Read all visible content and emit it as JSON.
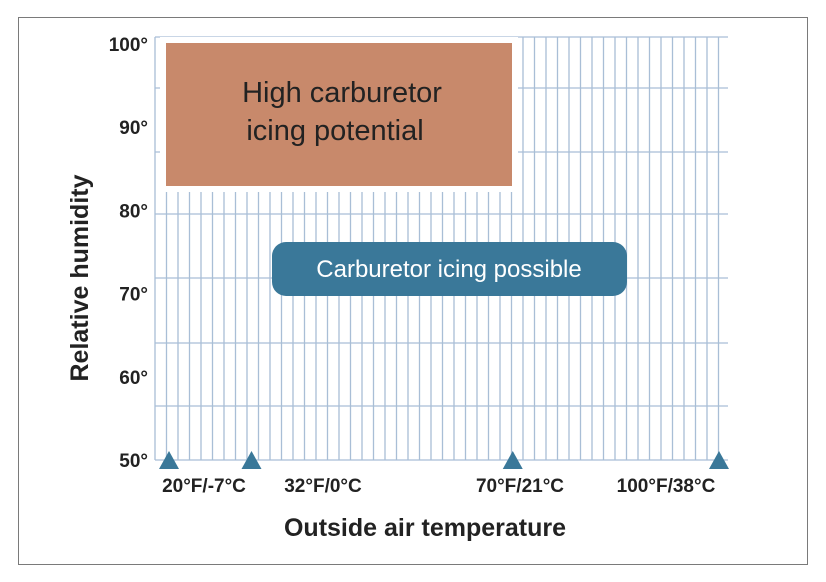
{
  "chart_data": {
    "type": "area",
    "title": "",
    "xlabel": "Outside air temperature",
    "ylabel": "Relative humidity",
    "x_range_F": [
      20,
      100
    ],
    "ylim": [
      50,
      100
    ],
    "y_ticks": [
      {
        "value": 100,
        "label": "100°"
      },
      {
        "value": 90,
        "label": "90°"
      },
      {
        "value": 80,
        "label": "80°"
      },
      {
        "value": 70,
        "label": "70°"
      },
      {
        "value": 60,
        "label": "60°"
      },
      {
        "value": 50,
        "label": "50°"
      }
    ],
    "x_ticks": [
      {
        "value": 20,
        "label": "20°F/-7°C"
      },
      {
        "value": 32,
        "label": "32°F/0°C"
      },
      {
        "value": 70,
        "label": "70°F/21°C"
      },
      {
        "value": 100,
        "label": "100°F/38°C"
      }
    ],
    "grid": true,
    "regions": [
      {
        "label": "High carburetor icing potential",
        "lines": [
          "High carburetor",
          "icing potential"
        ],
        "x_range": [
          20,
          70
        ],
        "y_range": [
          83,
          100
        ],
        "color": "#c8896b"
      },
      {
        "label": "Carburetor icing possible",
        "x_range": [
          20,
          100
        ],
        "y_range": [
          50,
          100
        ],
        "color": "#3a7899"
      }
    ],
    "colors": {
      "grid": "#a9bed6",
      "marker": "#3a7899",
      "pill": "#3a7899",
      "high_zone": "#c8896b"
    }
  }
}
